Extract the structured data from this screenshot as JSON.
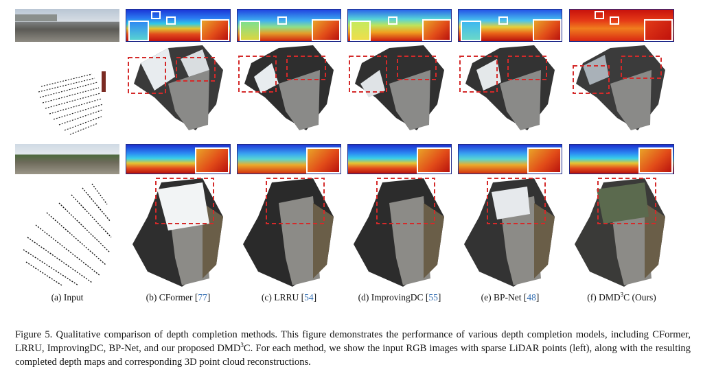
{
  "labels": {
    "input": "(a) Input",
    "cformer": "(b) CFormer",
    "cformer_ref": "77",
    "lrru": "(c) LRRU",
    "lrru_ref": "54",
    "improvingdc": "(d) ImprovingDC",
    "improvingdc_ref": "55",
    "bpnet": "(e) BP-Net",
    "bpnet_ref": "48",
    "ours_pre": "(f) DMD",
    "ours_sup": "3",
    "ours_post": "C (Ours)"
  },
  "caption": {
    "part1": "Figure 5.  Qualitative comparison of depth completion methods.  This figure demonstrates the performance of various depth completion models, including CFormer, LRRU, ImprovingDC, BP-Net, and our proposed DMD",
    "sup": "3",
    "part2": "C. For each method, we show the input RGB images with sparse LiDAR points (left), along with the resulting completed depth maps and corresponding 3D point cloud reconstructions."
  },
  "colors": {
    "citation": "#2f6bb0",
    "highlight_box": "#d42a2a",
    "depth_border": "#1e2a8a"
  }
}
